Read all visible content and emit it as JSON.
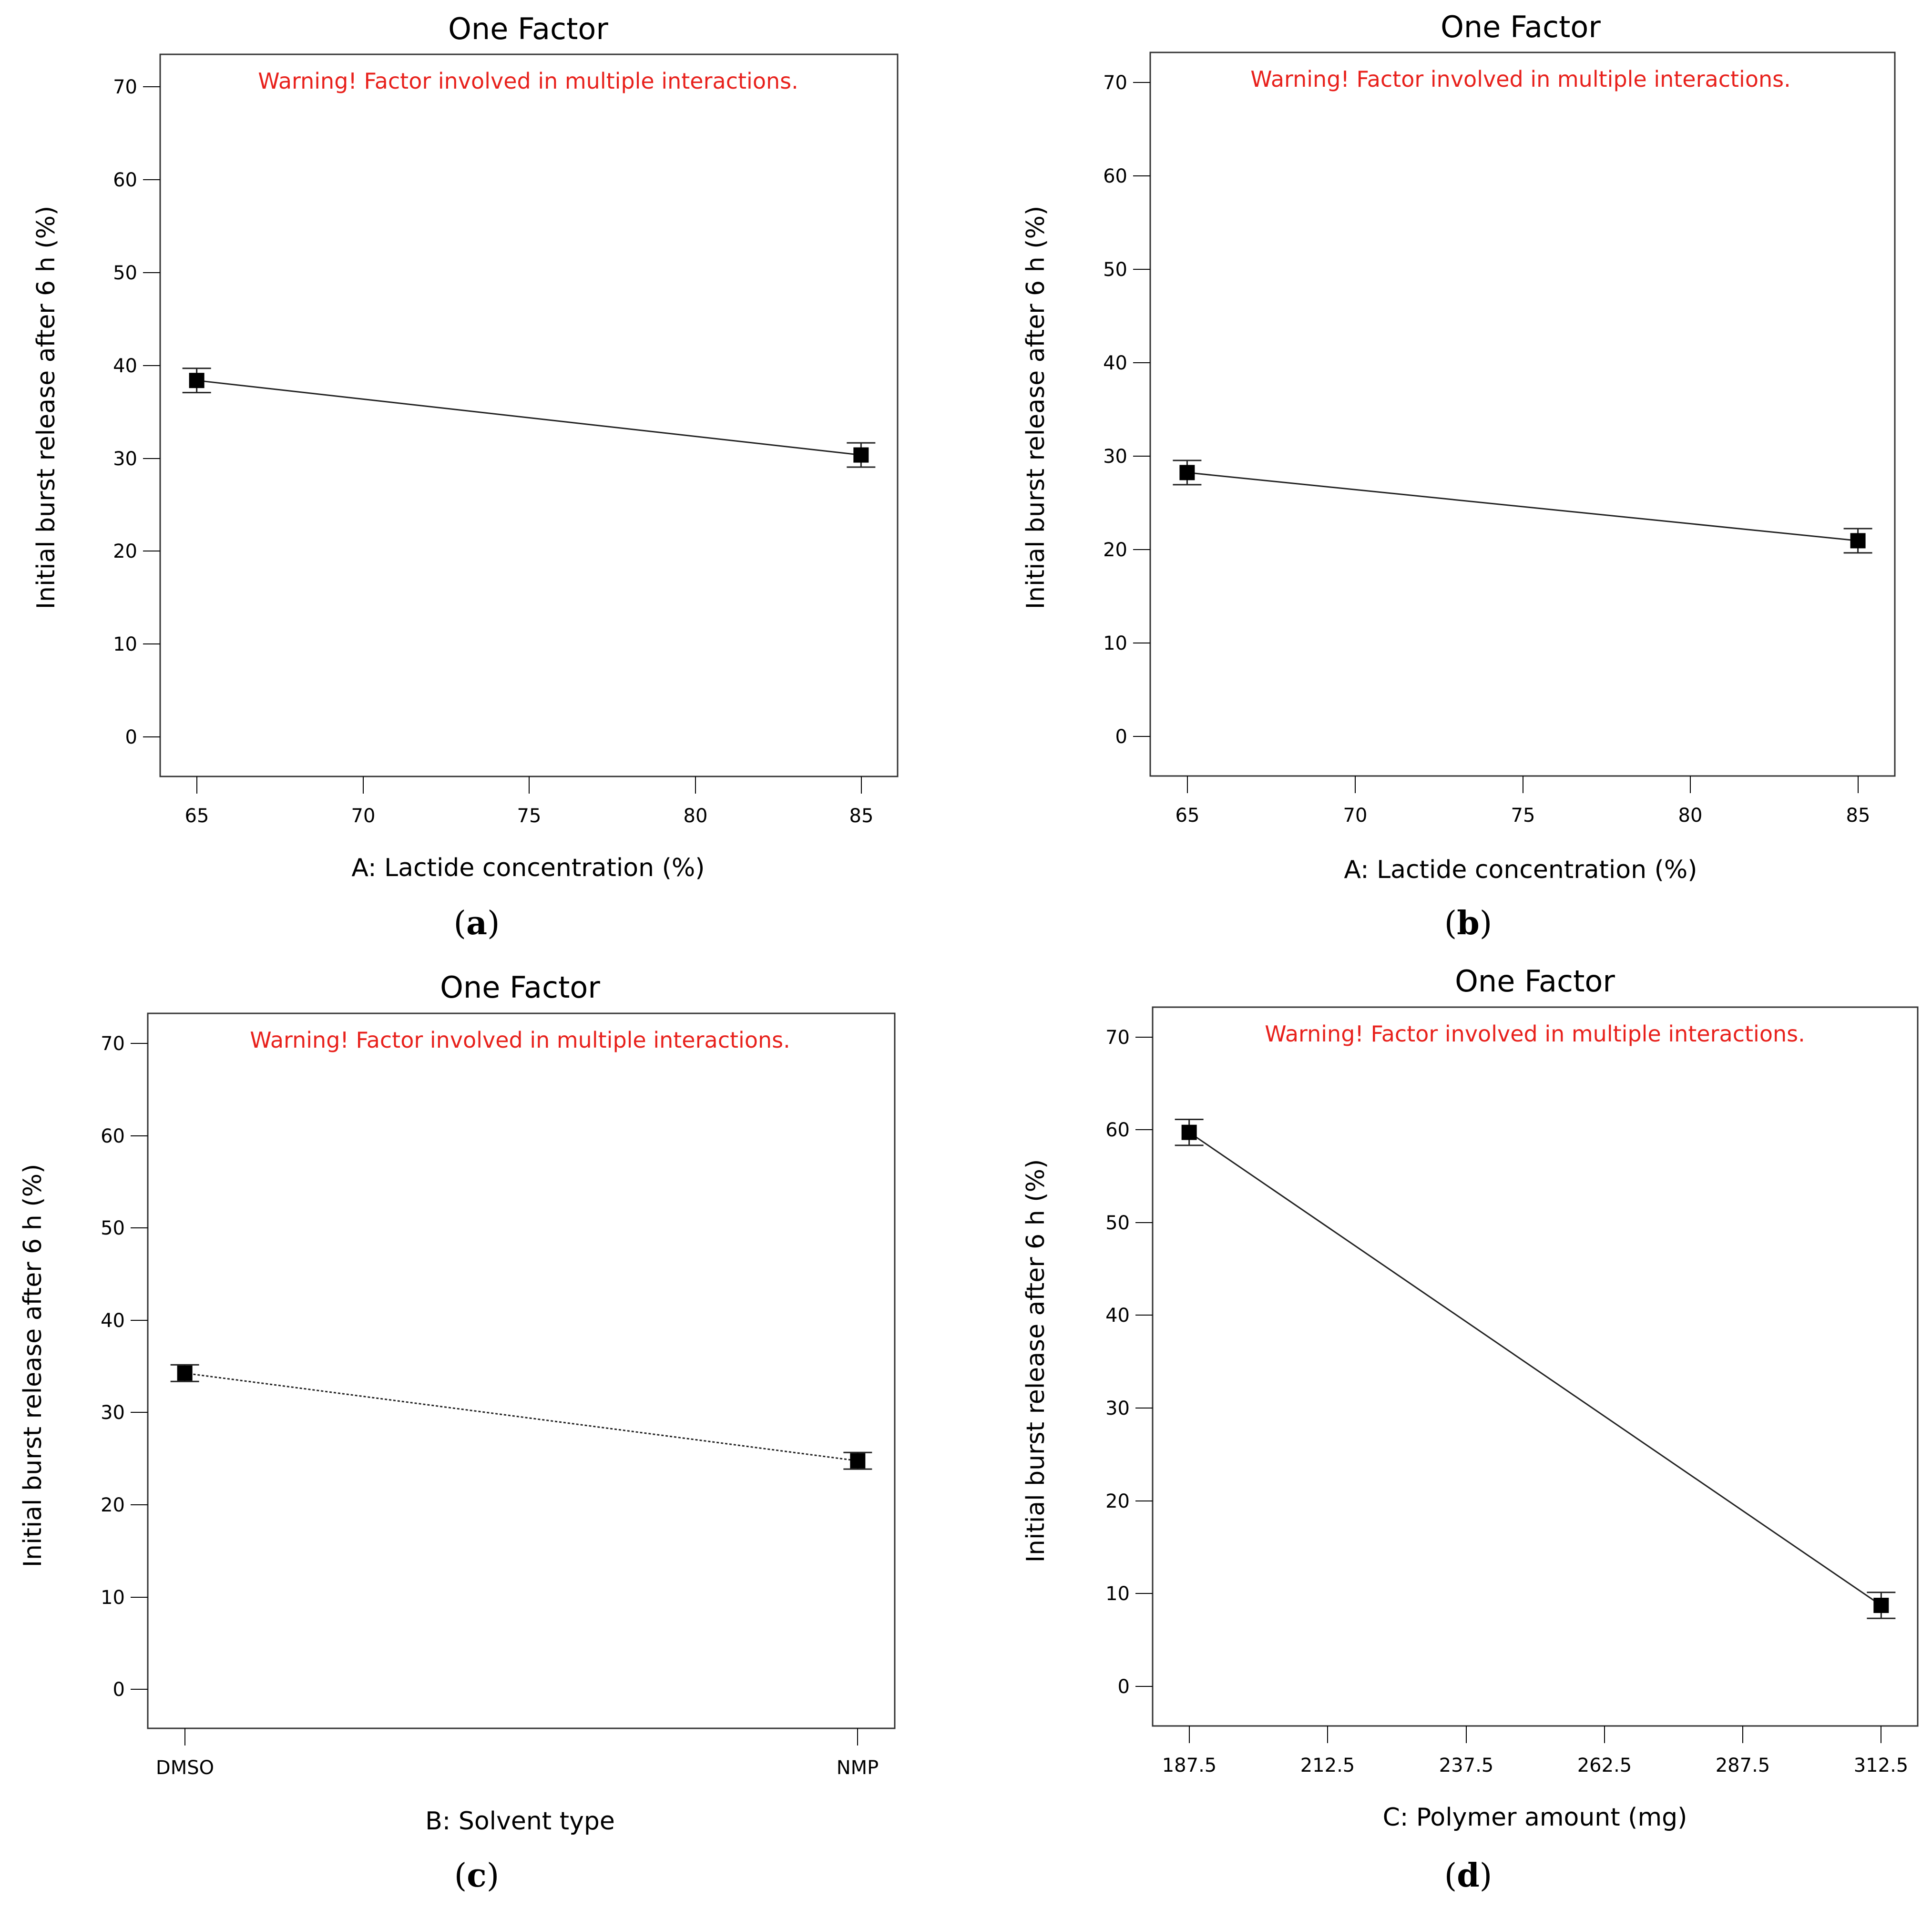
{
  "chart_data": [
    {
      "type": "line",
      "panel": "a",
      "title": "One Factor",
      "warning": "Warning! Factor involved in multiple interactions.",
      "xlabel": "A: Lactide concentration (%)",
      "ylabel": "Initial burst release after 6 h (%)",
      "xticks": [
        "65",
        "70",
        "75",
        "80",
        "85"
      ],
      "xticks_num": [
        65,
        70,
        75,
        80,
        85
      ],
      "xlim": [
        63.9,
        86.1
      ],
      "yticks": [
        "0",
        "10",
        "20",
        "30",
        "40",
        "50",
        "60",
        "70"
      ],
      "ylim": [
        -4,
        73.5
      ],
      "x": [
        65,
        85
      ],
      "y": [
        38.5,
        30.5
      ],
      "err": [
        1.3,
        1.3
      ],
      "line_style": "solid"
    },
    {
      "type": "line",
      "panel": "b",
      "title": "One Factor",
      "warning": "Warning! Factor involved in multiple interactions.",
      "xlabel": "A: Lactide concentration (%)",
      "ylabel": "Initial burst release after 6 h (%)",
      "xticks": [
        "65",
        "70",
        "75",
        "80",
        "85"
      ],
      "xticks_num": [
        65,
        70,
        75,
        80,
        85
      ],
      "xlim": [
        63.9,
        86.1
      ],
      "yticks": [
        "0",
        "10",
        "20",
        "30",
        "40",
        "50",
        "60",
        "70"
      ],
      "ylim": [
        -4,
        73.5
      ],
      "x": [
        65,
        85
      ],
      "y": [
        28.5,
        21.2
      ],
      "err": [
        1.3,
        1.3
      ],
      "line_style": "solid"
    },
    {
      "type": "line",
      "panel": "c",
      "title": "One Factor",
      "warning": "Warning! Factor involved in multiple interactions.",
      "xlabel": "B: Solvent type",
      "ylabel": "Initial burst release after 6 h (%)",
      "xticks": [
        "DMSO",
        "NMP"
      ],
      "xticks_num": [
        0,
        1
      ],
      "xlim": [
        -0.055,
        1.055
      ],
      "yticks": [
        "0",
        "10",
        "20",
        "30",
        "40",
        "50",
        "60",
        "70"
      ],
      "ylim": [
        -4,
        73.5
      ],
      "x": [
        0,
        1
      ],
      "y": [
        34.5,
        25.0
      ],
      "err": [
        0.9,
        0.9
      ],
      "line_style": "dotted"
    },
    {
      "type": "line",
      "panel": "d",
      "title": "One Factor",
      "warning": "Warning! Factor involved in multiple interactions.",
      "xlabel": "C: Polymer amount (mg)",
      "ylabel": "Initial burst release after 6 h (%)",
      "xticks": [
        "187.5",
        "212.5",
        "237.5",
        "262.5",
        "287.5",
        "312.5"
      ],
      "xticks_num": [
        187.5,
        212.5,
        237.5,
        262.5,
        287.5,
        312.5
      ],
      "xlim": [
        180.9,
        319.1
      ],
      "yticks": [
        "0",
        "10",
        "20",
        "30",
        "40",
        "50",
        "60",
        "70"
      ],
      "ylim": [
        -4,
        73.5
      ],
      "x": [
        187.5,
        312.5
      ],
      "y": [
        60.0,
        9.0
      ],
      "err": [
        1.4,
        1.4
      ],
      "line_style": "solid"
    }
  ],
  "panel_labels": [
    "a",
    "b",
    "c",
    "d"
  ]
}
